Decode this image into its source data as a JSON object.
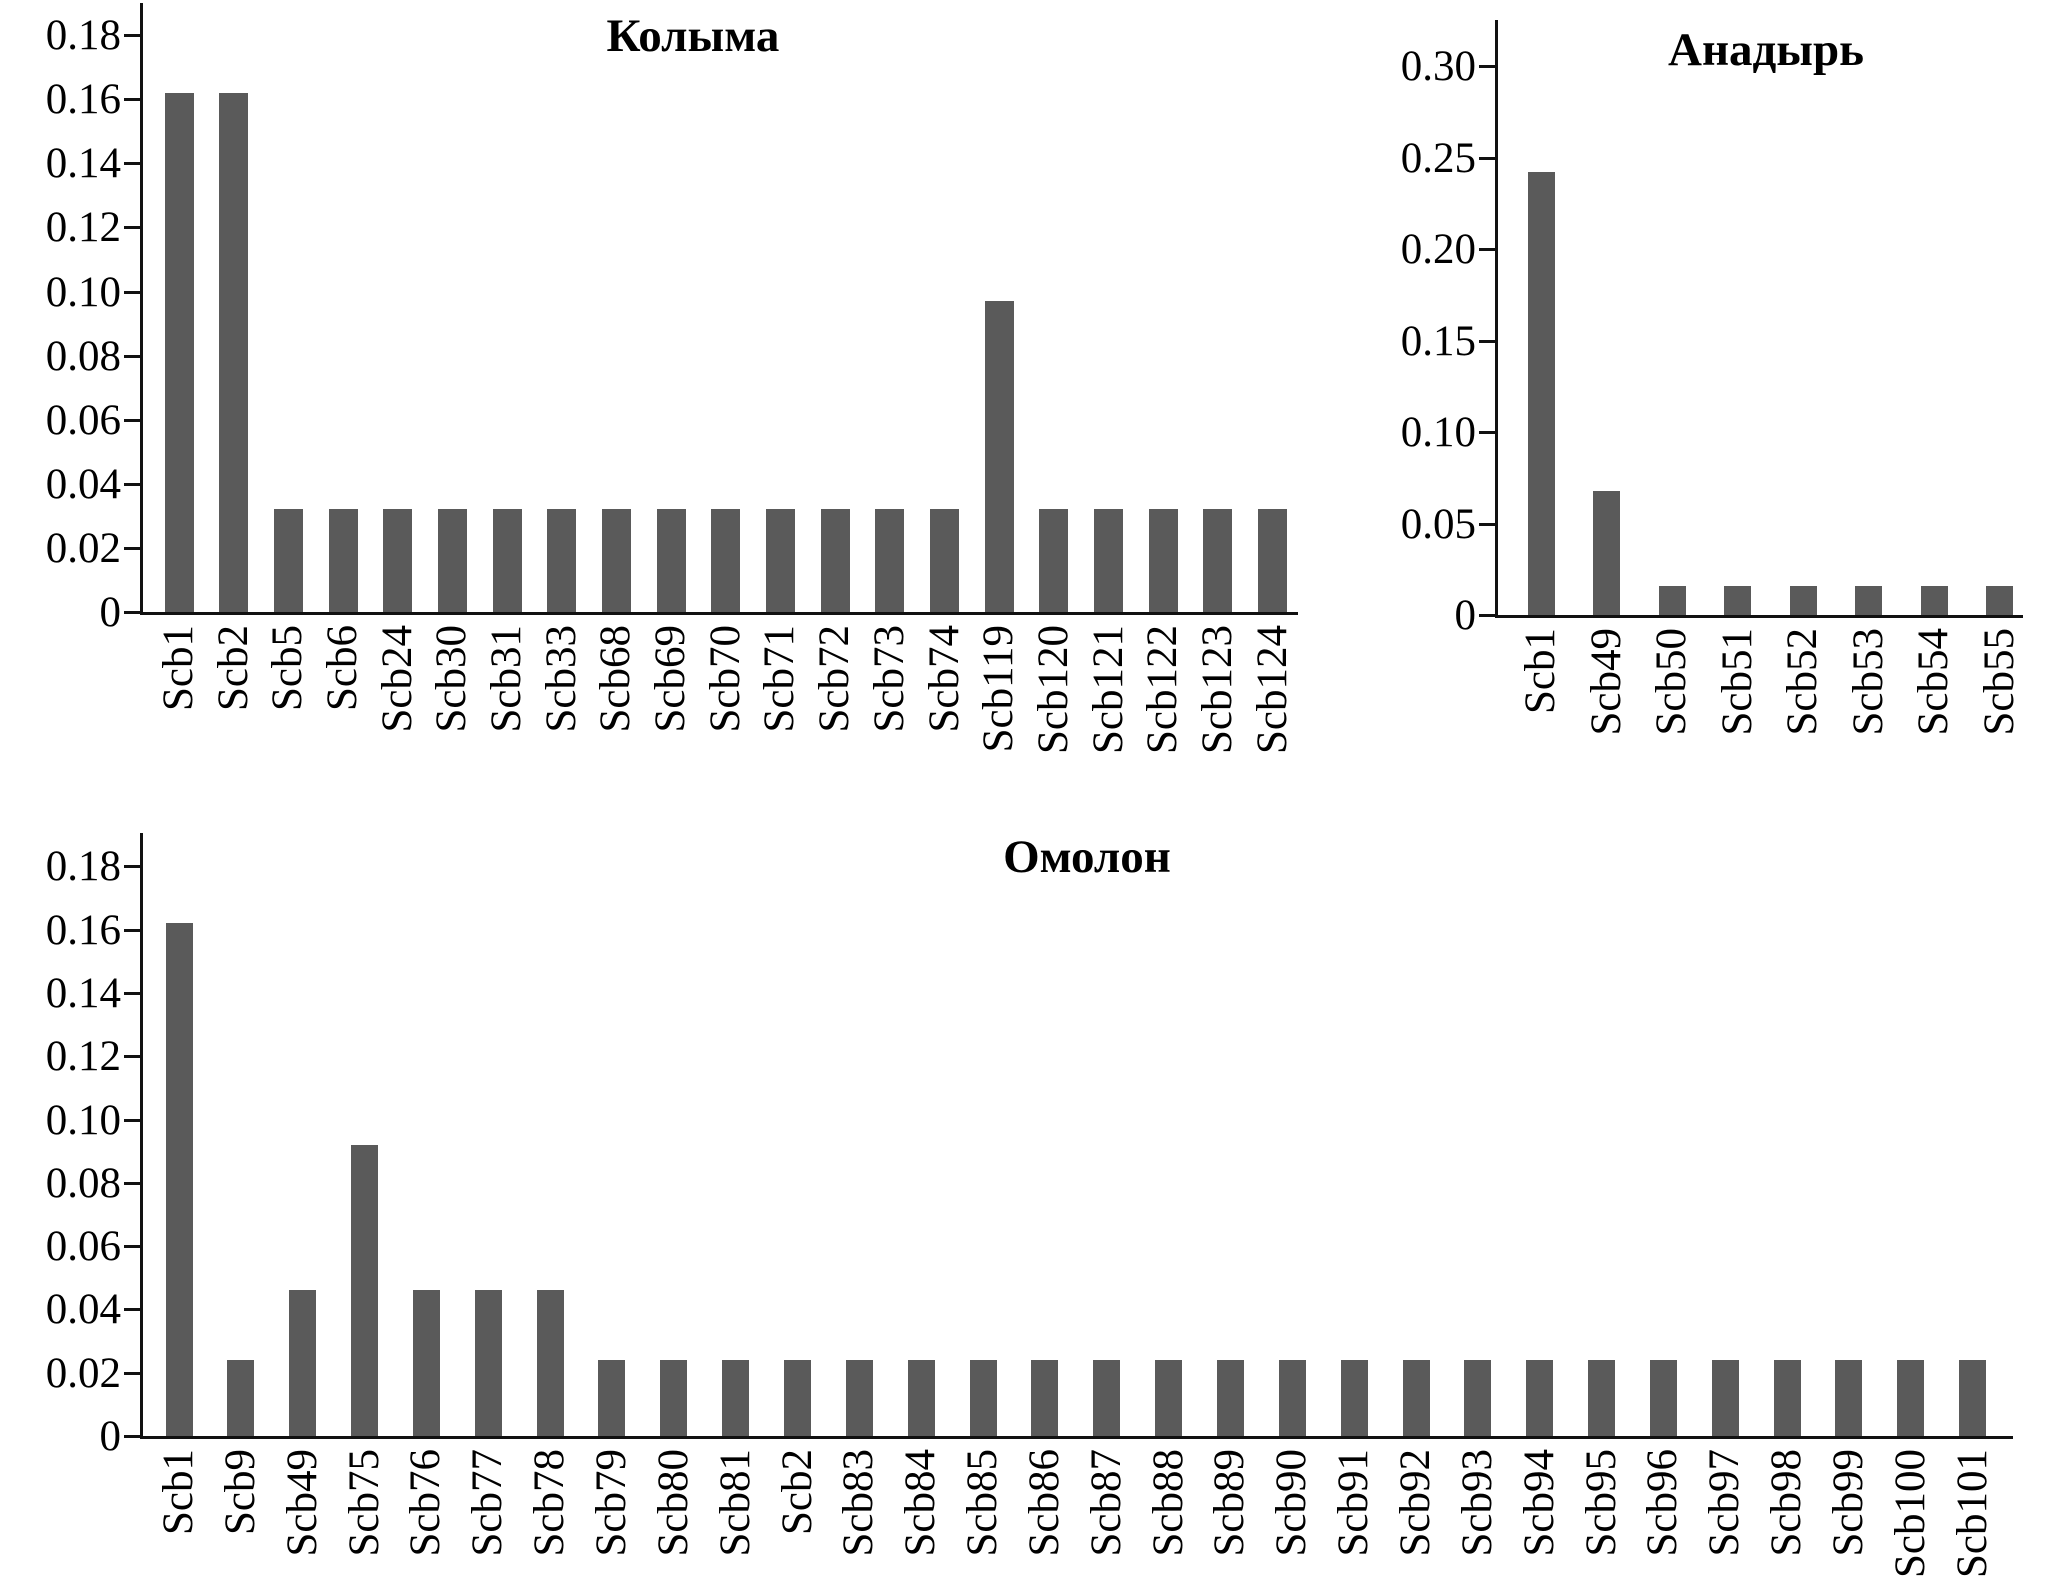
{
  "figure": {
    "background": "#ffffff",
    "bar_color": "#5a5a5a",
    "axis_color": "#111111",
    "text_color": "#000000"
  },
  "chart_data": [
    {
      "type": "bar",
      "title": "Колыма",
      "categories": [
        "Scb1",
        "Scb2",
        "Scb5",
        "Scb6",
        "Scb24",
        "Scb30",
        "Scb31",
        "Scb33",
        "Scb68",
        "Scb69",
        "Scb70",
        "Scb71",
        "Scb72",
        "Scb73",
        "Scb74",
        "Scb119",
        "Scb120",
        "Scb121",
        "Scb122",
        "Scb123",
        "Scb124"
      ],
      "values": [
        0.162,
        0.162,
        0.032,
        0.032,
        0.032,
        0.032,
        0.032,
        0.032,
        0.032,
        0.032,
        0.032,
        0.032,
        0.032,
        0.032,
        0.032,
        0.097,
        0.032,
        0.032,
        0.032,
        0.032,
        0.032
      ],
      "xlabel": "",
      "ylabel": "",
      "ylim": [
        0,
        0.19
      ],
      "ytick_values": [
        0,
        0.02,
        0.04,
        0.06,
        0.08,
        0.1,
        0.12,
        0.14,
        0.16,
        0.18
      ],
      "ytick_labels": [
        "0",
        "0.02",
        "0.04",
        "0.06",
        "0.08",
        "0.10",
        "0.12",
        "0.14",
        "0.16",
        "0.18"
      ],
      "grid": false,
      "legend": null
    },
    {
      "type": "bar",
      "title": "Анадырь",
      "categories": [
        "Scb1",
        "Scb49",
        "Scb50",
        "Scb51",
        "Scb52",
        "Scb53",
        "Scb54",
        "Scb55"
      ],
      "values": [
        0.242,
        0.068,
        0.016,
        0.016,
        0.016,
        0.016,
        0.016,
        0.016
      ],
      "xlabel": "",
      "ylabel": "",
      "ylim": [
        0,
        0.325
      ],
      "ytick_values": [
        0,
        0.05,
        0.1,
        0.15,
        0.2,
        0.25,
        0.3
      ],
      "ytick_labels": [
        "0",
        "0.05",
        "0.10",
        "0.15",
        "0.20",
        "0.25",
        "0.30"
      ],
      "grid": false,
      "legend": null
    },
    {
      "type": "bar",
      "title": "Омолон",
      "categories": [
        "Scb1",
        "Scb9",
        "Scb49",
        "Scb75",
        "Scb76",
        "Scb77",
        "Scb78",
        "Scb79",
        "Scb80",
        "Scb81",
        "Scb2",
        "Scb83",
        "Scb84",
        "Scb85",
        "Scb86",
        "Scb87",
        "Scb88",
        "Scb89",
        "Scb90",
        "Scb91",
        "Scb92",
        "Scb93",
        "Scb94",
        "Scb95",
        "Scb96",
        "Scb97",
        "Scb98",
        "Scb99",
        "Scb100",
        "Scb101"
      ],
      "values": [
        0.162,
        0.024,
        0.046,
        0.092,
        0.046,
        0.046,
        0.046,
        0.024,
        0.024,
        0.024,
        0.024,
        0.024,
        0.024,
        0.024,
        0.024,
        0.024,
        0.024,
        0.024,
        0.024,
        0.024,
        0.024,
        0.024,
        0.024,
        0.024,
        0.024,
        0.024,
        0.024,
        0.024,
        0.024,
        0.024
      ],
      "xlabel": "",
      "ylabel": "",
      "ylim": [
        0,
        0.19
      ],
      "ytick_values": [
        0,
        0.02,
        0.04,
        0.06,
        0.08,
        0.1,
        0.12,
        0.14,
        0.16,
        0.18
      ],
      "ytick_labels": [
        "0",
        "0.02",
        "0.04",
        "0.06",
        "0.08",
        "0.10",
        "0.12",
        "0.14",
        "0.16",
        "0.18"
      ],
      "grid": false,
      "legend": null
    }
  ]
}
